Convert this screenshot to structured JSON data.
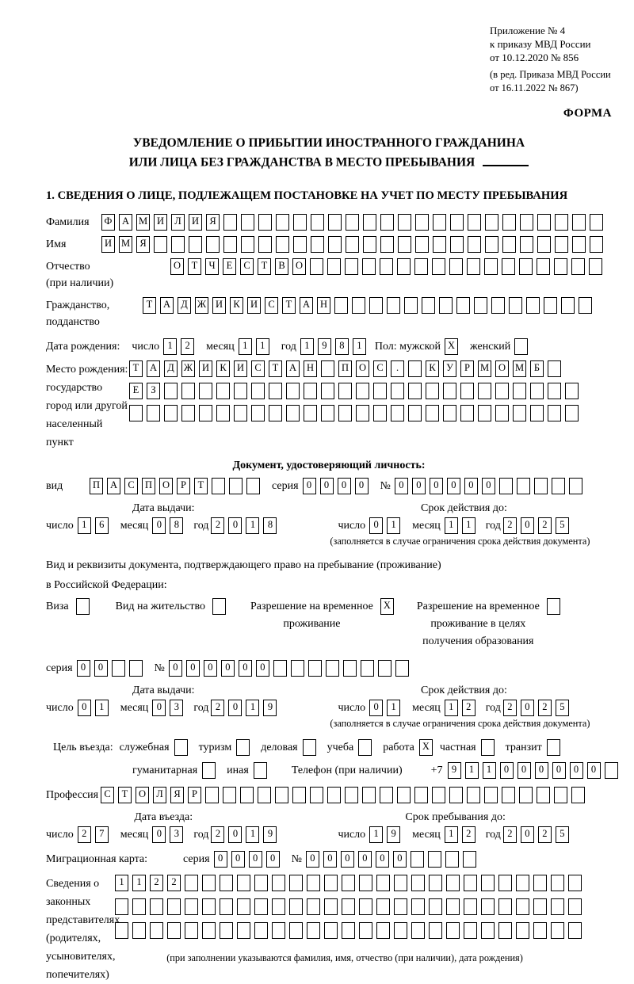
{
  "header": {
    "appendix": "Приложение № 4\nк приказу МВД России\nот 10.12.2020 № 856",
    "amendment": "(в ред. Приказа МВД России\nот 16.11.2022 № 867)",
    "form_label": "ФОРМА"
  },
  "title": {
    "line1": "УВЕДОМЛЕНИЕ О ПРИБЫТИИ ИНОСТРАННОГО ГРАЖДАНИНА",
    "line2": "ИЛИ ЛИЦА БЕЗ ГРАЖДАНСТВА В МЕСТО ПРЕБЫВАНИЯ"
  },
  "section1": {
    "heading": "1. СВЕДЕНИЯ О ЛИЦЕ, ПОДЛЕЖАЩЕМ ПОСТАНОВКЕ НА УЧЕТ ПО МЕСТУ ПРЕБЫВАНИЯ"
  },
  "fields": {
    "surname": {
      "label": "Фамилия",
      "value": "ФАМИЛИЯ"
    },
    "given_name": {
      "label": "Имя",
      "value": "ИМЯ"
    },
    "patronymic": {
      "label": "Отчество\n(при наличии)",
      "value": "ОТЧЕСТВО"
    },
    "citizenship": {
      "label": "Гражданство,\nподданство",
      "value": "ТАДЖИКИСТАН"
    },
    "birth_date": {
      "label": "Дата рождения:",
      "day_label": "число",
      "day": "12",
      "month_label": "месяц",
      "month": "11",
      "year_label": "год",
      "year": "1981",
      "sex_label": "Пол: мужской",
      "male_checked": "X",
      "female_label": "женский",
      "female_checked": ""
    },
    "birth_place": {
      "label": "Место рождения:\nгосударство\nгород или другой\nнаселенный пункт",
      "row1": "ТАДЖИКИСТАН ПОС. КУРМОМБ",
      "row2": "ЕЗ",
      "row3": ""
    }
  },
  "identity_doc": {
    "heading": "Документ, удостоверяющий личность:",
    "kind_label": "вид",
    "kind": "ПАСПОРТ",
    "series_label": "серия",
    "series": "0000",
    "number_label": "№",
    "number": "000000",
    "issue_heading": "Дата выдачи:",
    "issue": {
      "day_label": "число",
      "day": "16",
      "month_label": "месяц",
      "month": "08",
      "year_label": "год",
      "year": "2018"
    },
    "expiry_heading": "Срок действия до:",
    "expiry": {
      "day_label": "число",
      "day": "01",
      "month_label": "месяц",
      "month": "11",
      "year_label": "год",
      "year": "2025"
    },
    "note": "(заполняется в случае ограничения срока действия документа)"
  },
  "residence_doc": {
    "intro": "Вид и реквизиты документа, подтверждающего право на пребывание (проживание)\nв Российской Федерации:",
    "options": [
      {
        "label": "Виза",
        "checked": ""
      },
      {
        "label": "Вид на жительство",
        "checked": ""
      },
      {
        "label": "Разрешение на временное\nпроживание",
        "checked": "X"
      },
      {
        "label": "Разрешение на временное\nпроживание в целях\nполучения образования",
        "checked": ""
      }
    ],
    "series_label": "серия",
    "series": "00",
    "number_label": "№",
    "number": "000000",
    "issue_heading": "Дата выдачи:",
    "issue": {
      "day_label": "число",
      "day": "01",
      "month_label": "месяц",
      "month": "03",
      "year_label": "год",
      "year": "2019"
    },
    "expiry_heading": "Срок действия до:",
    "expiry": {
      "day_label": "число",
      "day": "01",
      "month_label": "месяц",
      "month": "12",
      "year_label": "год",
      "year": "2025"
    },
    "note": "(заполняется в случае ограничения срока действия документа)"
  },
  "purpose": {
    "label": "Цель въезда:",
    "options": [
      {
        "label": "служебная",
        "checked": ""
      },
      {
        "label": "туризм",
        "checked": ""
      },
      {
        "label": "деловая",
        "checked": ""
      },
      {
        "label": "учеба",
        "checked": ""
      },
      {
        "label": "работа",
        "checked": "X"
      },
      {
        "label": "частная",
        "checked": ""
      },
      {
        "label": "транзит",
        "checked": ""
      },
      {
        "label": "гуманитарная",
        "checked": ""
      },
      {
        "label": "иная",
        "checked": ""
      }
    ],
    "phone_label": "Телефон (при наличии)",
    "phone_prefix": "+7",
    "phone": "911000000"
  },
  "profession": {
    "label": "Профессия",
    "value": "СТОЛЯР"
  },
  "entry": {
    "entry_heading": "Дата въезда:",
    "entry_date": {
      "day_label": "число",
      "day": "27",
      "month_label": "месяц",
      "month": "03",
      "year_label": "год",
      "year": "2019"
    },
    "stay_heading": "Срок пребывания до:",
    "stay_date": {
      "day_label": "число",
      "day": "19",
      "month_label": "месяц",
      "month": "12",
      "year_label": "год",
      "year": "2025"
    }
  },
  "migration_card": {
    "label": "Миграционная карта:",
    "series_label": "серия",
    "series": "0000",
    "number_label": "№",
    "number": "000000"
  },
  "representatives": {
    "label": "Сведения о\nзаконных\nпредставителях\n(родителях,\nусыновителях,\nпопечителях)",
    "row1": "1122",
    "row2": "",
    "row3": "",
    "note": "(при заполнении указываются фамилия, имя, отчество (при наличии), дата рождения)"
  }
}
